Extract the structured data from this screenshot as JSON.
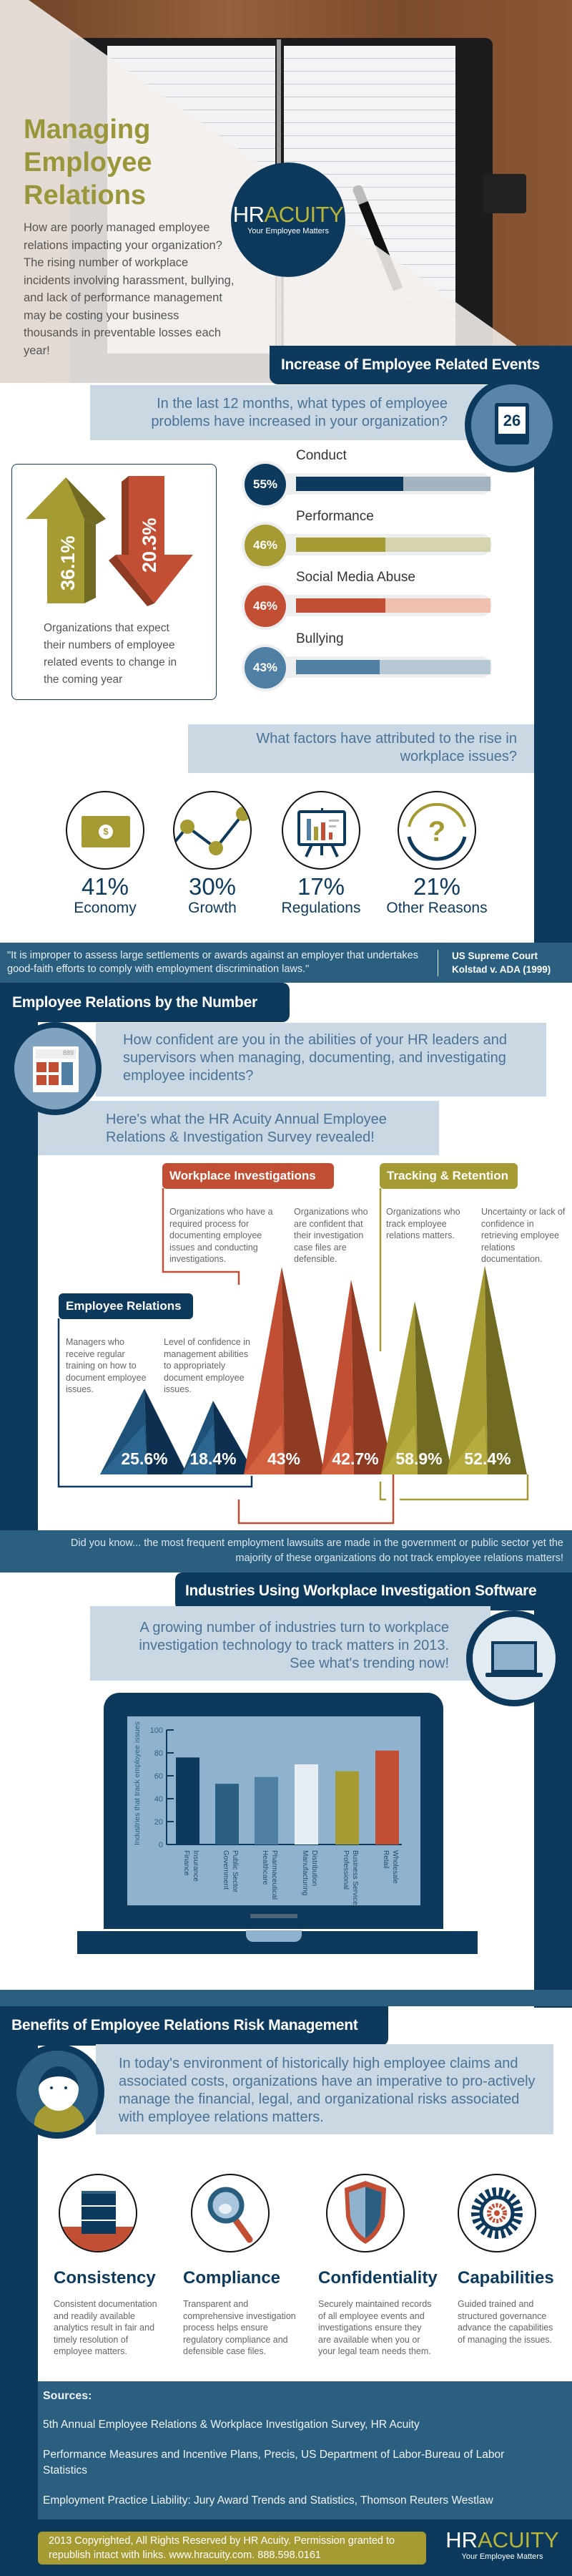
{
  "hero": {
    "title_lines": [
      "Managing",
      "Employee",
      "Relations"
    ],
    "intro": "How are poorly managed employee relations impacting your organization? The rising number of workplace incidents involving harassment, bullying, and lack of performance management may be costing your business thousands in preventable losses each year!"
  },
  "logo": {
    "hr": "HR",
    "acuity": "ACUITY",
    "tagline": "Your Employee Matters"
  },
  "colors": {
    "navy": "#0d3a5c",
    "mid_blue": "#2b5f80",
    "light_box": "#c9d8e3",
    "olive": "#a59b32",
    "red": "#c24e33"
  },
  "events": {
    "header": "Increase of Employee Related Events",
    "question": "In the last 12 months, what types of employee problems have increased in your organization?",
    "calendar_day": "26",
    "arrow_up": "36.1%",
    "arrow_down": "20.3%",
    "arrow_caption": "Organizations that expect their numbers of employee related events to change in the coming year",
    "bars": [
      {
        "label": "Conduct",
        "value_label": "55%",
        "value": 55,
        "color": "#0d3a5c",
        "track": "#a3b3c0"
      },
      {
        "label": "Performance",
        "value_label": "46%",
        "value": 46,
        "color": "#a59b32",
        "track": "#d6d3b0"
      },
      {
        "label": "Social Media Abuse",
        "value_label": "46%",
        "value": 46,
        "color": "#c24e33",
        "track": "#efc0ad"
      },
      {
        "label": "Bullying",
        "value_label": "43%",
        "value": 43,
        "color": "#4f7fa3",
        "track": "#b7c8d5"
      }
    ]
  },
  "factors": {
    "question": "What factors have attributed to the rise in workplace issues?",
    "items": [
      {
        "value": "41%",
        "label": "Economy",
        "icon": "money-icon"
      },
      {
        "value": "30%",
        "label": "Growth",
        "icon": "growth-chart-icon"
      },
      {
        "value": "17%",
        "label": "Regulations",
        "icon": "presentation-board-icon"
      },
      {
        "value": "21%",
        "label": "Other Reasons",
        "icon": "question-mark-icon"
      }
    ]
  },
  "quote": {
    "text": "\"It is improper to assess large settlements or awards against an employer that undertakes good-faith efforts to comply with employment discrimination laws.\"",
    "source_line1": "US Supreme Court",
    "source_line2": "Kolstad v. ADA (1999)"
  },
  "numbers": {
    "header": "Employee Relations by the Number",
    "calculator_display": "889",
    "question": "How confident are you in the abilities of your HR leaders and supervisors when managing, documenting, and investigating employee incidents?",
    "intro": "Here's what the HR Acuity Annual Employee Relations & Investigation Survey revealed!",
    "groups": {
      "employee_relations": {
        "title": "Employee Relations",
        "color": "#0d3a5c",
        "items": [
          {
            "desc": "Managers who receive regular training on how to document employee issues.",
            "value": "25.6%"
          },
          {
            "desc": "Level of confidence in management abilities to appropriately document employee issues.",
            "value": "18.4%"
          }
        ]
      },
      "workplace_investigations": {
        "title": "Workplace Investigations",
        "color": "#c24e33",
        "items": [
          {
            "desc": "Organizations who have a required process for documenting employee issues and conducting investigations.",
            "value": "43%"
          },
          {
            "desc": "Organizations who are confident that their investigation case files are defensible.",
            "value": "42.7%"
          }
        ]
      },
      "tracking_retention": {
        "title": "Tracking & Retention",
        "color": "#a59b32",
        "items": [
          {
            "desc": "Organizations who track employee relations matters.",
            "value": "58.9%"
          },
          {
            "desc": "Uncertainty or lack of confidence in retrieving employee relations documentation.",
            "value": "52.4%"
          }
        ]
      }
    },
    "did_you_know": "Did you know... the most frequent employment lawsuits are made in the government or public sector yet the majority of these organizations do not track employee relations matters!"
  },
  "industries": {
    "header": "Industries Using Workplace Investigation Software",
    "intro": "A growing number of industries turn to workplace investigation technology to track matters in 2013. See what's trending now!"
  },
  "chart_data": {
    "type": "bar",
    "categories": [
      [
        "Finance",
        "Insurance"
      ],
      [
        "Government",
        "Public Sector"
      ],
      [
        "Healthcare",
        "Pharmaceutical"
      ],
      [
        "Manufacturing",
        "Distribution"
      ],
      [
        "Professional",
        "Business Services"
      ],
      [
        "Retail",
        "Wholesale"
      ]
    ],
    "values": [
      76,
      53,
      59,
      70,
      64,
      82
    ],
    "colors": [
      "#0d3a5c",
      "#2a5f82",
      "#4f7fa3",
      "#e6eef4",
      "#a59b32",
      "#c24e33"
    ],
    "ylabel": "Industries that track employee issues",
    "xlabel": "",
    "ylim": [
      0,
      100
    ],
    "yticks": [
      "0",
      "20",
      "40",
      "60",
      "80",
      "100"
    ],
    "grid": false
  },
  "benefits": {
    "header": "Benefits of Employee Relations Risk Management",
    "intro": "In today's environment of historically high employee claims and associated costs, organizations have an imperative to pro-actively manage the financial, legal, and organizational risks associated with employee relations matters.",
    "items": [
      {
        "title": "Consistency",
        "desc": "Consistent documentation and readily available analytics result in fair and timely resolution of employee matters.",
        "icon": "file-cabinet-icon"
      },
      {
        "title": "Compliance",
        "desc": "Transparent and comprehensive investigation process helps ensure regulatory compliance and defensible case files.",
        "icon": "magnifier-icon"
      },
      {
        "title": "Confidentiality",
        "desc": "Securely maintained records of all employee events and investigations ensure they are available when you or your legal team needs them.",
        "icon": "shield-icon"
      },
      {
        "title": "Capabilities",
        "desc": "Guided trained and structured governance advance the capabilities of managing the issues.",
        "icon": "gear-icon"
      }
    ]
  },
  "sources": {
    "title": "Sources:",
    "items": [
      "5th Annual Employee Relations & Workplace Investigation Survey, HR Acuity",
      "Performance Measures and Incentive Plans, Precis, US Department of Labor-Bureau of Labor Statistics",
      "Employment Practice Liability: Jury Award Trends and Statistics, Thomson Reuters Westlaw"
    ]
  },
  "footer": {
    "copyright": "2013 Copyrighted, All Rights Reserved by HR Acuity. Permission granted to republish intact with links. www.hracuity.com. 888.598.0161"
  }
}
